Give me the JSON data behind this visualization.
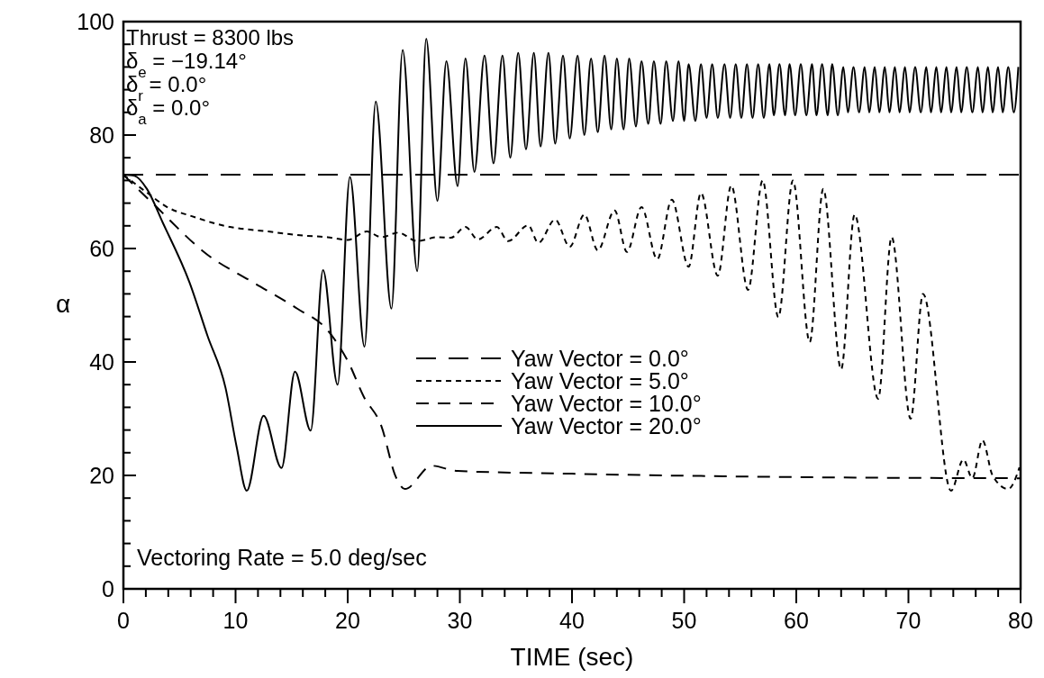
{
  "chart_data": {
    "type": "line",
    "xlabel": "TIME (sec)",
    "ylabel": "α",
    "xlim": [
      0,
      80
    ],
    "ylim": [
      0,
      100
    ],
    "xticks": [
      0,
      {
        "value": 2,
        "label": null
      },
      {
        "value": 4,
        "label": null
      },
      {
        "value": 6,
        "label": null
      },
      {
        "value": 8,
        "label": null
      },
      10,
      {
        "value": 12,
        "label": null
      },
      {
        "value": 14,
        "label": null
      },
      {
        "value": 16,
        "label": null
      },
      {
        "value": 18,
        "label": null
      },
      20,
      {
        "value": 22,
        "label": null
      },
      {
        "value": 24,
        "label": null
      },
      {
        "value": 26,
        "label": null
      },
      {
        "value": 28,
        "label": null
      },
      30,
      {
        "value": 32,
        "label": null
      },
      {
        "value": 34,
        "label": null
      },
      {
        "value": 36,
        "label": null
      },
      {
        "value": 38,
        "label": null
      },
      40,
      {
        "value": 42,
        "label": null
      },
      {
        "value": 44,
        "label": null
      },
      {
        "value": 46,
        "label": null
      },
      {
        "value": 48,
        "label": null
      },
      50,
      {
        "value": 52,
        "label": null
      },
      {
        "value": 54,
        "label": null
      },
      {
        "value": 56,
        "label": null
      },
      {
        "value": 58,
        "label": null
      },
      60,
      {
        "value": 62,
        "label": null
      },
      {
        "value": 64,
        "label": null
      },
      {
        "value": 66,
        "label": null
      },
      {
        "value": 68,
        "label": null
      },
      70,
      {
        "value": 72,
        "label": null
      },
      {
        "value": 74,
        "label": null
      },
      {
        "value": 76,
        "label": null
      },
      {
        "value": 78,
        "label": null
      },
      80
    ],
    "yticks": [
      0,
      {
        "value": 4,
        "label": null
      },
      {
        "value": 8,
        "label": null
      },
      {
        "value": 12,
        "label": null
      },
      {
        "value": 16,
        "label": null
      },
      20,
      {
        "value": 24,
        "label": null
      },
      {
        "value": 28,
        "label": null
      },
      {
        "value": 32,
        "label": null
      },
      {
        "value": 36,
        "label": null
      },
      40,
      {
        "value": 44,
        "label": null
      },
      {
        "value": 48,
        "label": null
      },
      {
        "value": 52,
        "label": null
      },
      {
        "value": 56,
        "label": null
      },
      60,
      {
        "value": 64,
        "label": null
      },
      {
        "value": 68,
        "label": null
      },
      {
        "value": 72,
        "label": null
      },
      {
        "value": 76,
        "label": null
      },
      80,
      {
        "value": 84,
        "label": null
      },
      {
        "value": 88,
        "label": null
      },
      {
        "value": 92,
        "label": null
      },
      {
        "value": 96,
        "label": null
      },
      100
    ],
    "grid": false,
    "legend": "right",
    "marker": "none",
    "annotations": [
      "Thrust = 8300 lbs",
      "δ$_{e}$ = −19.14°",
      "δ$_{r}$ = 0.0°",
      "δ$_{a}$ = 0.0°",
      "Vectoring Rate = 5.0 deg/sec"
    ],
    "series": [
      {
        "name": "Yaw Vector = 0.0°",
        "color": "#000000",
        "line_style": "dashed",
        "x": [
          0,
          80
        ],
        "values": [
          73,
          73
        ]
      },
      {
        "name": "Yaw Vector = 5.0°",
        "color": "#000000",
        "line_style": "dashed",
        "x": [
          0,
          2,
          4,
          6.1,
          9,
          12.9,
          16,
          18.2,
          20,
          21.7,
          23,
          24.5,
          26.2,
          28,
          29.2,
          30.5,
          31.6,
          33.3,
          34.3,
          36.1,
          37,
          38.5,
          39.8,
          41.1,
          42.3,
          43.8,
          44.9,
          46.2,
          47.6,
          48.9,
          50.4,
          51.5,
          53,
          54.2,
          55.7,
          57,
          58.4,
          59.7,
          61.2,
          62.4,
          64,
          65.2,
          67.3,
          68.5,
          70.2,
          71.3,
          73.8,
          74.9,
          75.7,
          76.6,
          77.5,
          78.9,
          79.9
        ],
        "values": [
          73,
          70,
          67.2,
          65.7,
          64,
          63,
          62.3,
          62,
          61.5,
          63,
          62,
          62.8,
          61.3,
          62,
          61.9,
          63.8,
          61.6,
          63.8,
          61.3,
          64.1,
          61,
          65.1,
          60.3,
          66,
          59.7,
          66.7,
          59.4,
          67.3,
          58.1,
          68.6,
          56.8,
          69.8,
          55.2,
          71.1,
          52.7,
          72,
          47.9,
          72,
          43.5,
          70.5,
          38.7,
          66,
          33.5,
          62,
          30,
          52,
          17.3,
          22.8,
          19.5,
          26.2,
          20,
          17.6,
          21.4
        ]
      },
      {
        "name": "Yaw Vector = 10.0°",
        "color": "#000000",
        "line_style": "dashed",
        "x": [
          0,
          2.7,
          7.5,
          11.5,
          15.5,
          18.2,
          20.1,
          21.4,
          23,
          24.3,
          25.1,
          27.5,
          29.7,
          40,
          60,
          80
        ],
        "values": [
          73,
          67.8,
          58.9,
          54.1,
          49.4,
          45.6,
          39.8,
          34,
          28.7,
          19.7,
          17.6,
          21.7,
          20.8,
          20.3,
          19.7,
          19.5
        ]
      },
      {
        "name": "Yaw Vector = 20.0°",
        "color": "#000000",
        "line_style": "solid",
        "x": [
          0,
          1,
          2.1,
          3.5,
          5.9,
          7.5,
          9.1,
          10.1,
          11,
          12.5,
          14.1,
          15.3,
          16.7,
          17.8,
          19.1,
          20.2,
          21.5,
          22.5,
          23.9,
          24.9,
          26.2,
          27,
          28,
          28.8,
          29.8,
          30.5,
          31.3,
          32.2,
          33,
          33.8,
          34.5,
          35.2,
          35.9,
          36.6,
          37.2,
          37.9,
          38.5,
          39.2,
          39.8,
          40.5,
          41.1,
          41.7,
          42.3,
          42.9,
          43.5,
          44,
          44.6,
          45.1,
          45.7,
          46.2,
          46.8,
          47.3,
          47.9,
          48.4,
          49,
          49.5,
          50,
          50.4,
          51,
          51.5,
          52,
          52.5,
          53,
          53.6,
          54.1,
          54.6,
          55.1,
          55.6,
          56.1,
          56.6,
          57.1,
          57.6,
          58,
          58.5,
          59,
          59.4,
          59.9,
          60.4,
          60.9,
          61.4,
          61.8,
          62.3,
          62.8,
          63.2,
          63.7,
          64.2,
          64.6,
          65.1,
          65.6,
          66.1,
          66.5,
          67,
          67.4,
          67.9,
          68.3,
          68.8,
          69.2,
          69.7,
          70.1,
          70.6,
          71.1,
          71.6,
          72,
          72.5,
          72.9,
          73.4,
          73.8,
          74.3,
          74.7,
          75.2,
          75.7,
          76.2,
          76.6,
          77.1,
          77.5,
          78,
          78.4,
          78.9,
          79.4,
          79.8
        ],
        "values": [
          73,
          72.8,
          70.5,
          64.6,
          54,
          44.6,
          35.5,
          25,
          17.3,
          30.5,
          21.3,
          38.3,
          27.9,
          56.2,
          36,
          72.6,
          42.7,
          85.9,
          49.4,
          95,
          56,
          97,
          68.4,
          93,
          71,
          93.5,
          73.5,
          94,
          75,
          94,
          76,
          94.5,
          77.5,
          94.5,
          78,
          94.5,
          78.5,
          94,
          79.4,
          94,
          80,
          93.5,
          80.5,
          94,
          81,
          93.5,
          81,
          93.5,
          81.5,
          93,
          82,
          93,
          82,
          93,
          82.5,
          93,
          82.5,
          92.5,
          82.5,
          92.5,
          83,
          92.5,
          83,
          92.5,
          83,
          92.5,
          83,
          92.5,
          83,
          92.5,
          83,
          92.5,
          83.5,
          92.5,
          83.5,
          92.5,
          83.5,
          92.5,
          83.5,
          92.5,
          83.5,
          92.5,
          83.5,
          92.5,
          83.5,
          92,
          84,
          92,
          84,
          92,
          84,
          92,
          84,
          92,
          84,
          92,
          84,
          92,
          84,
          92,
          84,
          92,
          84,
          92,
          84,
          92,
          84,
          92,
          84,
          92,
          84,
          92,
          84,
          92,
          84,
          92,
          84,
          92,
          84,
          92
        ]
      }
    ]
  }
}
